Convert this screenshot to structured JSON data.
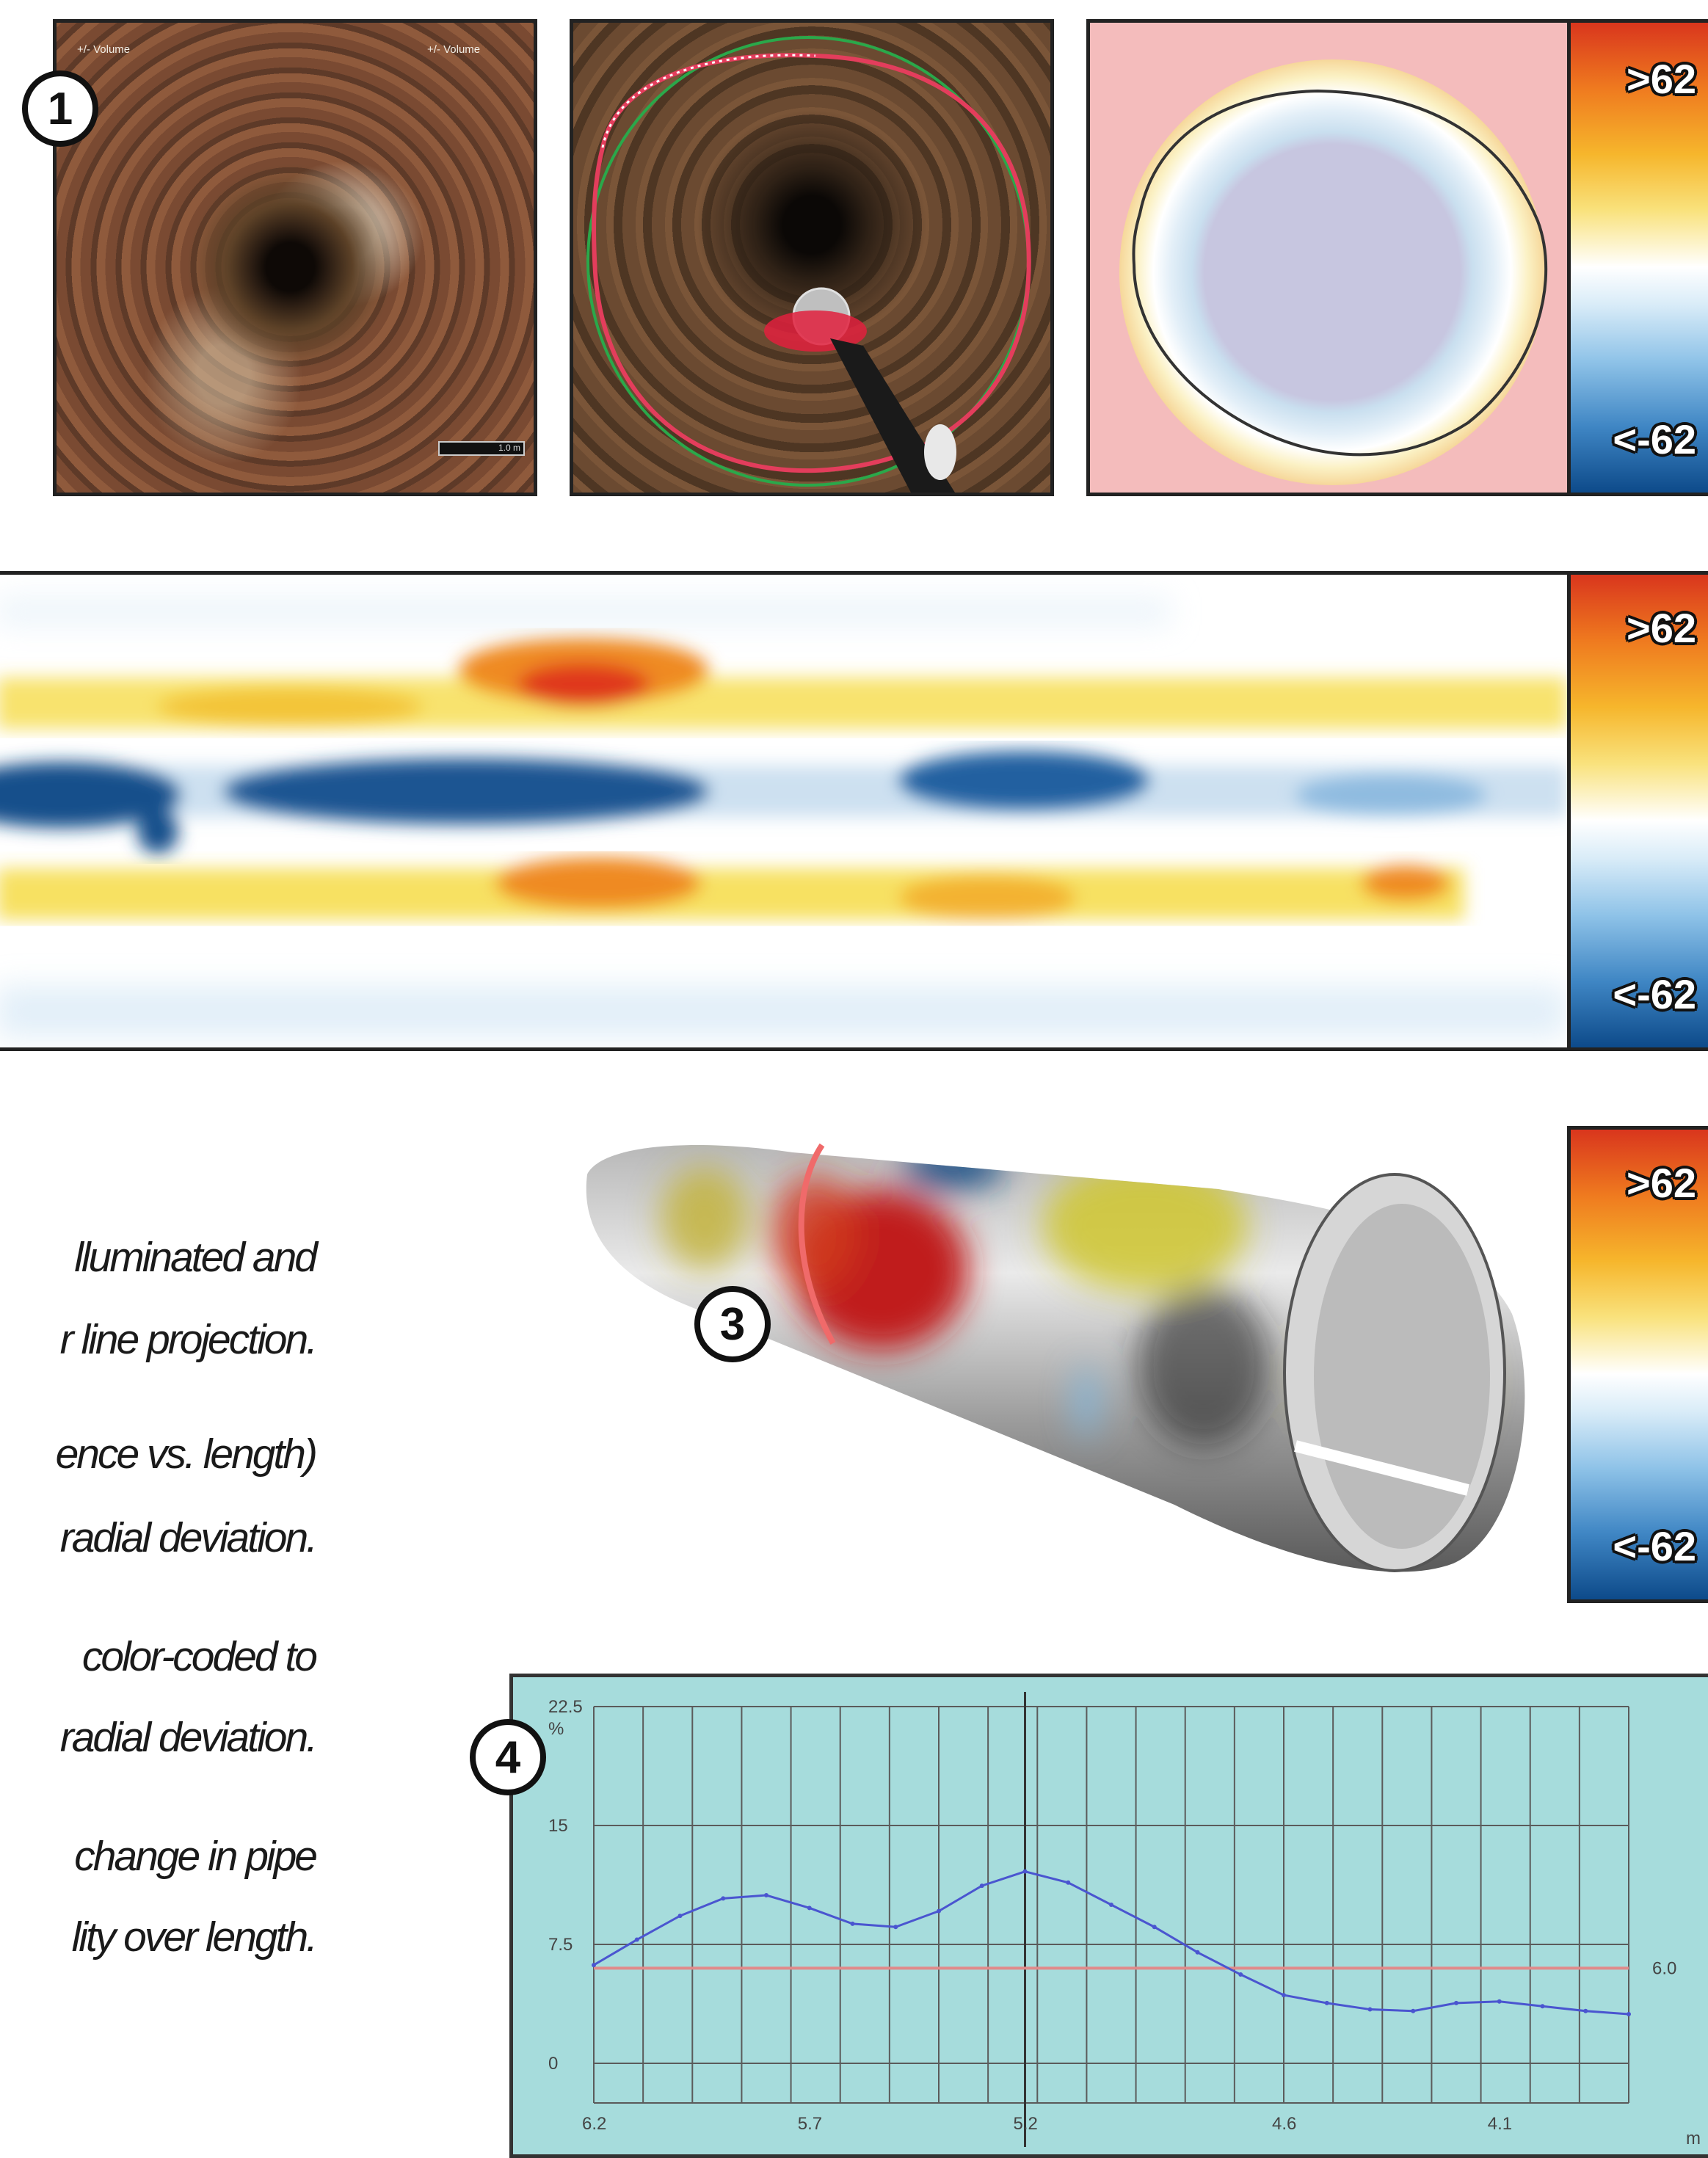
{
  "badges": {
    "one": "1",
    "three": "3",
    "four": "4"
  },
  "photo1": {
    "caption_left": "+/- Volume",
    "caption_right": "+/- Volume",
    "scale_label": "1.0 m"
  },
  "colorbar": {
    "top_label": ">62",
    "bottom_label": "<-62"
  },
  "captions": [
    "lluminated and",
    "r line projection.",
    "ence vs. length)",
    "radial deviation.",
    "color-coded to",
    "radial deviation.",
    "change in pipe",
    "lity over length."
  ],
  "graph": {
    "y_ticks": [
      "22.5",
      "%",
      "15",
      "7.5",
      "0"
    ],
    "x_ticks": [
      "6.2",
      "5.7",
      "5.2",
      "4.6",
      "4.1"
    ],
    "x_unit": "m",
    "threshold_label": "6.0",
    "threshold_value": 6.0,
    "cursor_x": 5.2,
    "line_color": "#4a55d0",
    "threshold_color": "#e08a8a"
  },
  "chart_data": {
    "type": "line",
    "title": "",
    "xlabel": "m",
    "ylabel": "%",
    "xlim": [
      6.2,
      3.8
    ],
    "ylim": [
      -2.5,
      22.5
    ],
    "x": [
      6.2,
      6.1,
      6.0,
      5.9,
      5.8,
      5.7,
      5.6,
      5.5,
      5.4,
      5.3,
      5.2,
      5.1,
      5.0,
      4.9,
      4.8,
      4.7,
      4.6,
      4.5,
      4.4,
      4.3,
      4.2,
      4.1,
      4.0,
      3.9,
      3.8
    ],
    "series": [
      {
        "values": [
          6.2,
          7.8,
          9.3,
          10.4,
          10.6,
          9.8,
          8.8,
          8.6,
          9.6,
          11.2,
          12.1,
          11.4,
          10.0,
          8.6,
          7.0,
          5.6,
          4.3,
          3.8,
          3.4,
          3.3,
          3.8,
          3.9,
          3.6,
          3.3,
          3.1
        ]
      }
    ],
    "threshold": 6.0,
    "grid": true
  }
}
